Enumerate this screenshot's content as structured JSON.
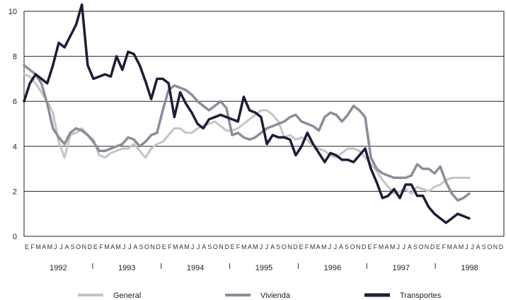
{
  "chart_data": {
    "type": "line",
    "title": "",
    "xlabel": "",
    "ylabel": "",
    "ylim": [
      0,
      10
    ],
    "yticks": [
      "0",
      "2",
      "4",
      "6",
      "8",
      "10"
    ],
    "grid": "horizontal",
    "legend_position": "bottom",
    "month_letters": [
      "E",
      "F",
      "M",
      "A",
      "M",
      "J",
      "J",
      "A",
      "S",
      "O",
      "N",
      "D"
    ],
    "years": [
      "1992",
      "1993",
      "1994",
      "1995",
      "1996",
      "1997",
      "1998"
    ],
    "x_start": "1992-01",
    "series": [
      {
        "name": "General",
        "color": "#c4c4c4",
        "values": [
          7.2,
          7.1,
          6.8,
          6.4,
          6.0,
          5.5,
          4.2,
          3.5,
          4.5,
          4.6,
          4.8,
          4.5,
          4.3,
          3.6,
          3.5,
          3.7,
          3.8,
          3.9,
          3.9,
          4.1,
          3.8,
          3.5,
          3.9,
          4.1,
          4.2,
          4.5,
          4.8,
          4.8,
          4.6,
          4.6,
          4.8,
          4.9,
          5.0,
          5.1,
          4.9,
          4.7,
          4.7,
          4.8,
          5.0,
          5.2,
          5.4,
          5.6,
          5.6,
          5.4,
          5.1,
          4.4,
          4.5,
          4.3,
          4.4,
          4.3,
          4.0,
          3.9,
          3.8,
          3.6,
          3.5,
          3.7,
          3.9,
          3.9,
          3.8,
          3.5,
          3.2,
          2.9,
          2.5,
          2.2,
          1.9,
          2.0,
          2.1,
          1.9,
          2.2,
          2.1,
          2.0,
          2.2,
          2.3,
          2.5,
          2.6,
          2.6,
          2.6,
          2.6
        ]
      },
      {
        "name": "Vivienda",
        "color": "#8c8c9c",
        "values": [
          7.6,
          7.4,
          7.2,
          6.8,
          5.9,
          4.8,
          4.4,
          4.1,
          4.6,
          4.8,
          4.7,
          4.5,
          4.2,
          3.8,
          3.8,
          3.9,
          4.0,
          4.1,
          4.4,
          4.3,
          4.0,
          4.2,
          4.5,
          4.6,
          5.6,
          6.5,
          6.7,
          6.6,
          6.5,
          6.3,
          6.0,
          5.8,
          5.6,
          5.8,
          6.0,
          5.7,
          4.5,
          4.6,
          4.4,
          4.3,
          4.4,
          4.6,
          4.8,
          4.9,
          5.0,
          5.1,
          5.3,
          5.4,
          5.1,
          5.0,
          4.9,
          4.7,
          5.3,
          5.5,
          5.4,
          5.1,
          5.4,
          5.8,
          5.6,
          5.3,
          3.5,
          3.0,
          2.8,
          2.7,
          2.6,
          2.6,
          2.6,
          2.7,
          3.2,
          3.0,
          3.0,
          2.8,
          3.1,
          2.4,
          1.9,
          1.6,
          1.7,
          1.9
        ]
      },
      {
        "name": "Transportes",
        "color": "#1c1c3a",
        "values": [
          6.0,
          6.8,
          7.2,
          7.0,
          6.8,
          7.6,
          8.6,
          8.4,
          8.9,
          9.4,
          10.3,
          7.6,
          7.0,
          7.1,
          7.2,
          7.1,
          8.0,
          7.4,
          8.2,
          8.1,
          7.6,
          6.9,
          6.1,
          7.0,
          7.0,
          6.8,
          5.3,
          6.4,
          5.9,
          5.5,
          5.0,
          4.8,
          5.2,
          5.3,
          5.4,
          5.3,
          5.2,
          5.1,
          6.2,
          5.6,
          5.5,
          5.3,
          4.1,
          4.5,
          4.4,
          4.4,
          4.3,
          3.6,
          4.0,
          4.6,
          4.1,
          3.7,
          3.3,
          3.7,
          3.6,
          3.4,
          3.4,
          3.3,
          3.6,
          3.9,
          3.0,
          2.4,
          1.7,
          1.8,
          2.1,
          1.7,
          2.3,
          2.3,
          1.8,
          1.8,
          1.3,
          1.0,
          0.8,
          0.6,
          0.8,
          1.0,
          0.9,
          0.8
        ]
      }
    ]
  }
}
